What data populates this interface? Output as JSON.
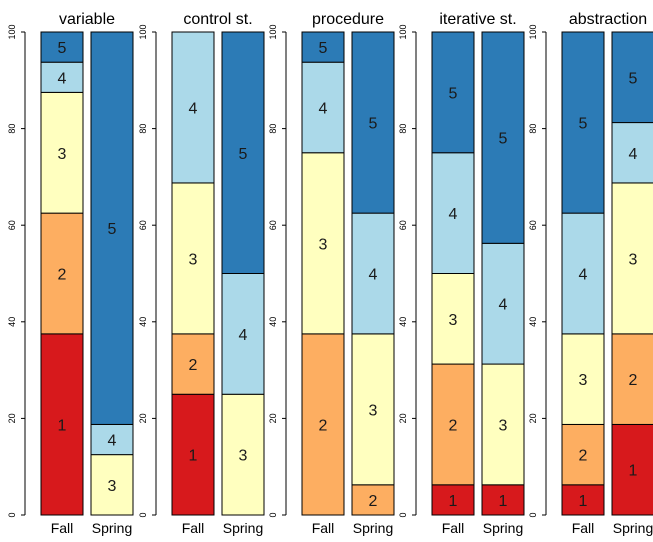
{
  "chart_data": {
    "type": "bar",
    "stacked": true,
    "categories": [
      "Fall",
      "Spring"
    ],
    "ylim": [
      0,
      100
    ],
    "yticks": [
      "0",
      "20",
      "40",
      "60",
      "80",
      "100"
    ],
    "level_colors": {
      "1": "#d7191c",
      "2": "#fdae61",
      "3": "#ffffbf",
      "4": "#abd9e9",
      "5": "#2c7bb6"
    },
    "panels": [
      {
        "title": "variable",
        "bars": [
          {
            "category": "Fall",
            "segments": [
              {
                "level": "1",
                "value": 37.5
              },
              {
                "level": "2",
                "value": 25
              },
              {
                "level": "3",
                "value": 25
              },
              {
                "level": "4",
                "value": 6.25
              },
              {
                "level": "5",
                "value": 6.25
              }
            ]
          },
          {
            "category": "Spring",
            "segments": [
              {
                "level": "3",
                "value": 12.5
              },
              {
                "level": "4",
                "value": 6.25
              },
              {
                "level": "5",
                "value": 81.25
              }
            ]
          }
        ]
      },
      {
        "title": "control st.",
        "bars": [
          {
            "category": "Fall",
            "segments": [
              {
                "level": "1",
                "value": 25
              },
              {
                "level": "2",
                "value": 12.5
              },
              {
                "level": "3",
                "value": 31.25
              },
              {
                "level": "4",
                "value": 31.25
              }
            ]
          },
          {
            "category": "Spring",
            "segments": [
              {
                "level": "3",
                "value": 25
              },
              {
                "level": "4",
                "value": 25
              },
              {
                "level": "5",
                "value": 50
              }
            ]
          }
        ]
      },
      {
        "title": "procedure",
        "bars": [
          {
            "category": "Fall",
            "segments": [
              {
                "level": "2",
                "value": 37.5
              },
              {
                "level": "3",
                "value": 37.5
              },
              {
                "level": "4",
                "value": 18.75
              },
              {
                "level": "5",
                "value": 6.25
              }
            ]
          },
          {
            "category": "Spring",
            "segments": [
              {
                "level": "2",
                "value": 6.25
              },
              {
                "level": "3",
                "value": 31.25
              },
              {
                "level": "4",
                "value": 25
              },
              {
                "level": "5",
                "value": 37.5
              }
            ]
          }
        ]
      },
      {
        "title": "iterative st.",
        "bars": [
          {
            "category": "Fall",
            "segments": [
              {
                "level": "1",
                "value": 6.25
              },
              {
                "level": "2",
                "value": 25
              },
              {
                "level": "3",
                "value": 18.75
              },
              {
                "level": "4",
                "value": 25
              },
              {
                "level": "5",
                "value": 25
              }
            ]
          },
          {
            "category": "Spring",
            "segments": [
              {
                "level": "1",
                "value": 6.25
              },
              {
                "level": "3",
                "value": 25
              },
              {
                "level": "4",
                "value": 25
              },
              {
                "level": "5",
                "value": 43.75
              }
            ]
          }
        ]
      },
      {
        "title": "abstraction",
        "bars": [
          {
            "category": "Fall",
            "segments": [
              {
                "level": "1",
                "value": 6.25
              },
              {
                "level": "2",
                "value": 12.5
              },
              {
                "level": "3",
                "value": 18.75
              },
              {
                "level": "4",
                "value": 25
              },
              {
                "level": "5",
                "value": 37.5
              }
            ]
          },
          {
            "category": "Spring",
            "segments": [
              {
                "level": "1",
                "value": 18.75
              },
              {
                "level": "2",
                "value": 18.75
              },
              {
                "level": "3",
                "value": 31.25
              },
              {
                "level": "4",
                "value": 12.5
              },
              {
                "level": "5",
                "value": 18.75
              }
            ]
          }
        ]
      }
    ]
  }
}
